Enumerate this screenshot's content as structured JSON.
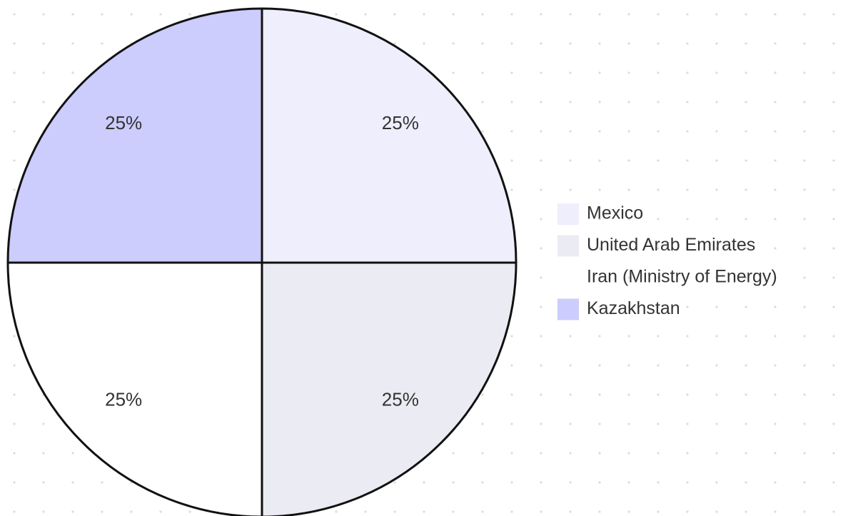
{
  "chart_data": {
    "type": "pie",
    "categories": [
      "Mexico",
      "United Arab Emirates",
      "Iran (Ministry of Energy)",
      "Kazakhstan"
    ],
    "values": [
      25,
      25,
      25,
      25
    ],
    "value_labels": [
      "25%",
      "25%",
      "25%",
      "25%"
    ],
    "colors": [
      "#eeeefc",
      "#ebebf4",
      "#ffffff",
      "#ccccfd"
    ],
    "legend": "right"
  }
}
